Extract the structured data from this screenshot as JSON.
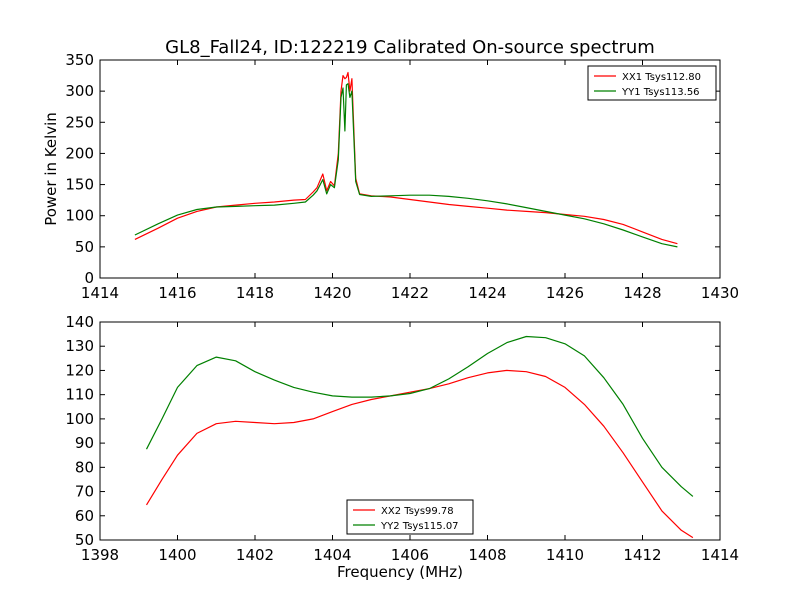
{
  "figure": {
    "title": "GL8_Fall24, ID:122219 Calibrated On-source spectrum"
  },
  "chart_data": [
    {
      "type": "line",
      "ylabel": "Power in Kelvin",
      "xlabel": "",
      "xlim": [
        1414,
        1430
      ],
      "ylim": [
        0,
        350
      ],
      "xticks": [
        "1414",
        "1416",
        "1418",
        "1420",
        "1422",
        "1424",
        "1426",
        "1428",
        "1430"
      ],
      "yticks": [
        "0",
        "50",
        "100",
        "150",
        "200",
        "250",
        "300",
        "350"
      ],
      "grid": false,
      "legend_position": "top-right",
      "series": [
        {
          "name": "XX1 Tsys112.80",
          "color": "#ff0000",
          "x": [
            1414.9,
            1415.5,
            1416.0,
            1416.5,
            1417.0,
            1417.5,
            1418.0,
            1418.5,
            1419.0,
            1419.3,
            1419.5,
            1419.6,
            1419.75,
            1419.85,
            1419.95,
            1420.05,
            1420.15,
            1420.22,
            1420.27,
            1420.32,
            1420.36,
            1420.4,
            1420.45,
            1420.5,
            1420.6,
            1420.7,
            1421.0,
            1421.5,
            1422.0,
            1422.5,
            1423.0,
            1423.5,
            1424.0,
            1424.5,
            1425.0,
            1425.5,
            1426.0,
            1426.5,
            1427.0,
            1427.5,
            1428.0,
            1428.5,
            1428.9
          ],
          "values": [
            62,
            80,
            96,
            107,
            114,
            117,
            120,
            122,
            125,
            126,
            138,
            145,
            167,
            140,
            155,
            148,
            200,
            300,
            325,
            320,
            322,
            330,
            300,
            320,
            160,
            135,
            132,
            130,
            126,
            122,
            118,
            115,
            112,
            109,
            107,
            105,
            102,
            99,
            94,
            86,
            74,
            62,
            55
          ]
        },
        {
          "name": "YY1 Tsys113.56",
          "color": "#008000",
          "x": [
            1414.9,
            1415.5,
            1416.0,
            1416.5,
            1417.0,
            1417.5,
            1418.0,
            1418.5,
            1419.0,
            1419.3,
            1419.5,
            1419.6,
            1419.75,
            1419.85,
            1419.95,
            1420.05,
            1420.15,
            1420.22,
            1420.27,
            1420.32,
            1420.36,
            1420.4,
            1420.45,
            1420.5,
            1420.6,
            1420.7,
            1421.0,
            1421.5,
            1422.0,
            1422.5,
            1423.0,
            1423.5,
            1424.0,
            1424.5,
            1425.0,
            1425.5,
            1426.0,
            1426.5,
            1427.0,
            1427.5,
            1428.0,
            1428.5,
            1428.9
          ],
          "values": [
            69,
            87,
            101,
            110,
            114,
            115,
            116,
            117,
            120,
            122,
            133,
            140,
            158,
            135,
            150,
            145,
            190,
            290,
            305,
            236,
            310,
            312,
            290,
            300,
            155,
            134,
            131,
            132,
            133,
            133,
            131,
            128,
            124,
            119,
            113,
            107,
            101,
            95,
            87,
            77,
            66,
            55,
            50
          ]
        }
      ]
    },
    {
      "type": "line",
      "ylabel": "",
      "xlabel": "Frequency (MHz)",
      "xlim": [
        1398,
        1414
      ],
      "ylim": [
        50,
        140
      ],
      "xticks": [
        "1398",
        "1400",
        "1402",
        "1404",
        "1406",
        "1408",
        "1410",
        "1412",
        "1414"
      ],
      "yticks": [
        "50",
        "60",
        "70",
        "80",
        "90",
        "100",
        "110",
        "120",
        "130",
        "140"
      ],
      "grid": false,
      "legend_position": "bottom-center",
      "series": [
        {
          "name": "XX2 Tsys99.78",
          "color": "#ff0000",
          "x": [
            1399.2,
            1399.6,
            1400.0,
            1400.5,
            1401.0,
            1401.5,
            1402.0,
            1402.5,
            1403.0,
            1403.5,
            1404.0,
            1404.5,
            1405.0,
            1405.5,
            1406.0,
            1406.5,
            1407.0,
            1407.5,
            1408.0,
            1408.5,
            1409.0,
            1409.5,
            1410.0,
            1410.5,
            1411.0,
            1411.5,
            1412.0,
            1412.5,
            1413.0,
            1413.3
          ],
          "values": [
            64.5,
            75,
            85,
            94,
            98,
            99,
            98.5,
            98,
            98.5,
            100,
            103,
            106,
            108,
            109.5,
            111,
            112.5,
            114.5,
            117,
            119,
            120,
            119.5,
            117.5,
            113,
            106,
            97,
            86,
            74,
            62,
            54,
            51
          ]
        },
        {
          "name": "YY2 Tsys115.07",
          "color": "#008000",
          "x": [
            1399.2,
            1399.6,
            1400.0,
            1400.5,
            1401.0,
            1401.5,
            1402.0,
            1402.5,
            1403.0,
            1403.5,
            1404.0,
            1404.5,
            1405.0,
            1405.5,
            1406.0,
            1406.5,
            1407.0,
            1407.5,
            1408.0,
            1408.5,
            1409.0,
            1409.5,
            1410.0,
            1410.5,
            1411.0,
            1411.5,
            1412.0,
            1412.5,
            1413.0,
            1413.3
          ],
          "values": [
            87.5,
            100,
            113,
            122,
            125.5,
            124,
            119.5,
            116,
            113,
            111,
            109.5,
            109,
            109,
            109.5,
            110.5,
            112.5,
            116.5,
            121.5,
            127,
            131.5,
            134,
            133.5,
            131,
            126,
            117,
            106,
            92,
            80,
            72,
            68
          ]
        }
      ]
    }
  ]
}
